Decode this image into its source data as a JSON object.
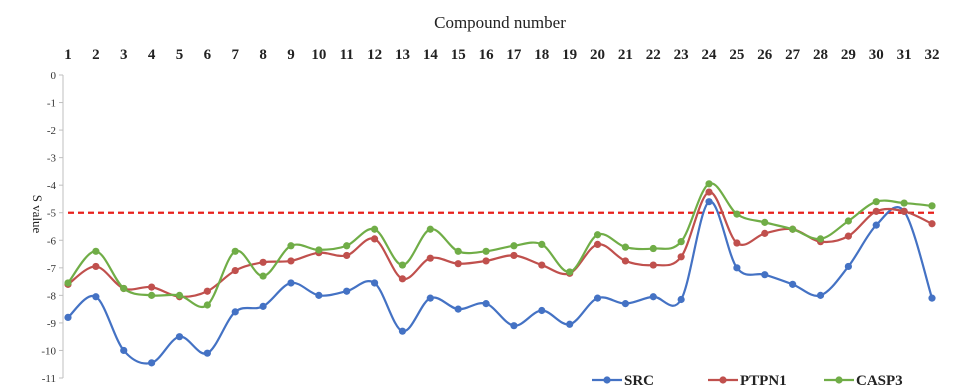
{
  "chart_data": {
    "type": "line",
    "title": "",
    "xlabel": "Compound number",
    "ylabel": "S value",
    "x": [
      1,
      2,
      3,
      4,
      5,
      6,
      7,
      8,
      9,
      10,
      11,
      12,
      13,
      14,
      15,
      16,
      17,
      18,
      19,
      20,
      21,
      22,
      23,
      24,
      25,
      26,
      27,
      28,
      29,
      30,
      31,
      32
    ],
    "yticks": [
      0,
      -1,
      -2,
      -3,
      -4,
      -5,
      -6,
      -7,
      -8,
      -9,
      -10,
      -11
    ],
    "ylim": [
      -11,
      0
    ],
    "xaxis_position": "top",
    "grid": false,
    "legend_position": "bottom-right",
    "reference_line": {
      "y": -5,
      "color": "#e8201c",
      "style": "dashed"
    },
    "series": [
      {
        "name": "SRC",
        "color": "#4472c4",
        "values": [
          -8.8,
          -8.05,
          -10.0,
          -10.45,
          -9.5,
          -10.1,
          -8.6,
          -8.4,
          -7.55,
          -8.0,
          -7.85,
          -7.55,
          -9.3,
          -8.1,
          -8.5,
          -8.3,
          -9.1,
          -8.55,
          -9.05,
          -8.1,
          -8.3,
          -8.05,
          -8.15,
          -4.6,
          -7.0,
          -7.25,
          -7.6,
          -8.0,
          -6.95,
          -5.45,
          -4.95,
          -8.1
        ]
      },
      {
        "name": "PTPN1",
        "color": "#c0504d",
        "values": [
          -7.6,
          -6.95,
          -7.75,
          -7.7,
          -8.05,
          -7.85,
          -7.1,
          -6.8,
          -6.75,
          -6.45,
          -6.55,
          -5.95,
          -7.4,
          -6.65,
          -6.85,
          -6.75,
          -6.55,
          -6.9,
          -7.2,
          -6.15,
          -6.75,
          -6.9,
          -6.6,
          -4.25,
          -6.1,
          -5.75,
          -5.6,
          -6.05,
          -5.85,
          -4.95,
          -4.95,
          -5.4
        ]
      },
      {
        "name": "CASP3",
        "color": "#70ad47",
        "values": [
          -7.55,
          -6.4,
          -7.75,
          -8.0,
          -8.0,
          -8.35,
          -6.4,
          -7.3,
          -6.2,
          -6.35,
          -6.2,
          -5.6,
          -6.9,
          -5.6,
          -6.4,
          -6.4,
          -6.2,
          -6.15,
          -7.15,
          -5.8,
          -6.25,
          -6.3,
          -6.05,
          -3.95,
          -5.05,
          -5.35,
          -5.6,
          -5.95,
          -5.3,
          -4.6,
          -4.65,
          -4.75
        ]
      }
    ]
  }
}
